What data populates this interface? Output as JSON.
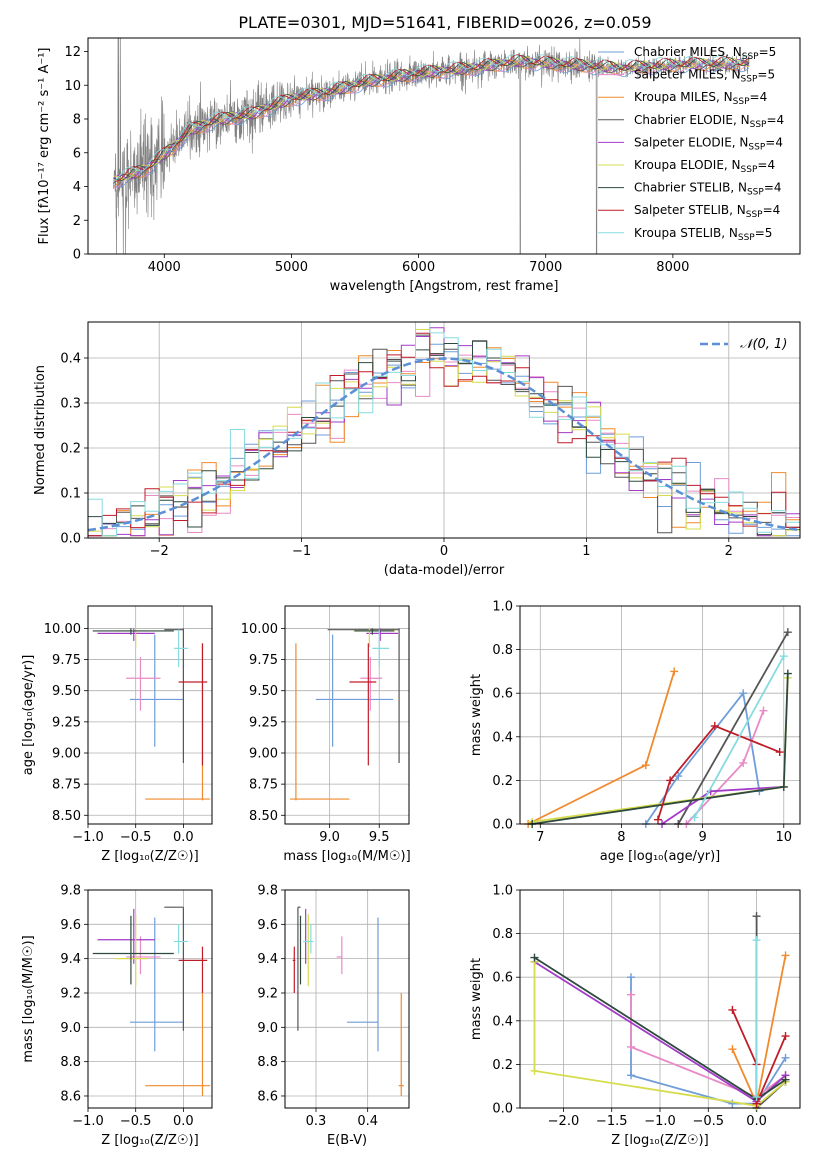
{
  "figure": {
    "title": "PLATE=0301, MJD=51641, FIBERID=0026, z=0.059"
  },
  "models": [
    {
      "name": "Chabrier MILES, N",
      "sub": "SSP",
      "suffix": "=5",
      "color": "#6f9dda",
      "eb": {
        "Z": [
          -0.3,
          -0.56,
          0.0
        ],
        "age": [
          9.43,
          9.05,
          9.95
        ],
        "mass": [
          9.03,
          8.86,
          9.64
        ],
        "ebv": [
          0.42,
          0.36,
          0.42
        ]
      }
    },
    {
      "name": "Salpeter MILES, N",
      "sub": "SSP",
      "suffix": "=5",
      "color": "#e88ac6",
      "eb": {
        "Z": [
          -0.45,
          -0.6,
          -0.24
        ],
        "age": [
          9.6,
          9.34,
          9.77
        ],
        "mass": [
          9.41,
          9.31,
          9.53
        ],
        "ebv": [
          0.35,
          0.34,
          0.35
        ]
      }
    },
    {
      "name": "Kroupa MILES, N",
      "sub": "SSP",
      "suffix": "=4",
      "color": "#f08a2c",
      "eb": {
        "Z": [
          0.2,
          -0.4,
          0.28
        ],
        "age": [
          8.63,
          8.62,
          9.88
        ],
        "mass": [
          8.66,
          8.6,
          9.2
        ],
        "ebv": [
          0.465,
          0.46,
          0.47
        ]
      }
    },
    {
      "name": "Chabrier ELODIE, N",
      "sub": "SSP",
      "suffix": "=4",
      "color": "#555555",
      "eb": {
        "Z": [
          0.0,
          -0.2,
          0.0
        ],
        "age": [
          9.99,
          8.92,
          10.0
        ],
        "mass": [
          9.7,
          8.98,
          9.7
        ],
        "ebv": [
          0.265,
          0.265,
          0.27
        ]
      }
    },
    {
      "name": "Salpeter ELODIE, N",
      "sub": "SSP",
      "suffix": "=4",
      "color": "#a23bc8",
      "eb": {
        "Z": [
          -0.52,
          -0.9,
          -0.3
        ],
        "age": [
          9.96,
          9.9,
          10.0
        ],
        "mass": [
          9.51,
          9.37,
          9.69
        ],
        "ebv": [
          0.28,
          0.28,
          0.28
        ]
      }
    },
    {
      "name": "Kroupa ELODIE, N",
      "sub": "SSP",
      "suffix": "=4",
      "color": "#d6dc4c",
      "eb": {
        "Z": [
          -0.5,
          -0.72,
          -0.37
        ],
        "age": [
          9.98,
          9.85,
          10.0
        ],
        "mass": [
          9.4,
          9.24,
          9.66
        ],
        "ebv": [
          0.285,
          0.282,
          0.286
        ]
      }
    },
    {
      "name": "Chabrier STELIB, N",
      "sub": "SSP",
      "suffix": "=4",
      "color": "#2e4a3e",
      "eb": {
        "Z": [
          -0.55,
          -0.95,
          -0.1
        ],
        "age": [
          9.98,
          9.95,
          10.0
        ],
        "mass": [
          9.43,
          9.25,
          9.65
        ],
        "ebv": [
          0.27,
          0.27,
          0.27
        ]
      }
    },
    {
      "name": "Salpeter STELIB, N",
      "sub": "SSP",
      "suffix": "=4",
      "color": "#c01c28",
      "eb": {
        "Z": [
          0.2,
          -0.05,
          0.25
        ],
        "age": [
          9.57,
          8.9,
          9.88
        ],
        "mass": [
          9.39,
          9.2,
          9.47
        ],
        "ebv": [
          0.258,
          0.255,
          0.26
        ]
      }
    },
    {
      "name": "Kroupa STELIB, N",
      "sub": "SSP",
      "suffix": "=5",
      "color": "#86dbe0",
      "eb": {
        "Z": [
          -0.05,
          -0.1,
          0.05
        ],
        "age": [
          9.84,
          9.69,
          9.99
        ],
        "mass": [
          9.5,
          9.43,
          9.6
        ],
        "ebv": [
          0.29,
          0.275,
          0.295
        ]
      }
    }
  ],
  "chart_data": [
    {
      "id": "spectrum",
      "type": "line",
      "xlabel": "wavelength [Angstrom, rest frame]",
      "ylabel": "Flux [fλ10⁻¹⁷ erg cm⁻² s⁻¹ A⁻¹]",
      "xlim": [
        3400,
        9000
      ],
      "ylim": [
        0,
        12.8
      ],
      "xticks": [
        4000,
        5000,
        6000,
        7000,
        8000
      ],
      "yticks": [
        0,
        2,
        4,
        6,
        8,
        10,
        12
      ],
      "data_color": "#808080",
      "data_wavelength_range": [
        3600,
        8600
      ],
      "continuum": {
        "x": [
          3600,
          3700,
          3850,
          3950,
          4050,
          4200,
          4400,
          4700,
          5000,
          5300,
          5600,
          6000,
          6400,
          6800,
          7200,
          7600,
          8000,
          8600
        ],
        "y": [
          4.3,
          4.6,
          5.0,
          5.6,
          6.2,
          7.3,
          7.9,
          8.3,
          9.2,
          9.6,
          10.2,
          10.7,
          11.0,
          11.4,
          11.2,
          11.0,
          11.2,
          11.3
        ]
      }
    },
    {
      "id": "residuals",
      "type": "bar",
      "xlabel": "(data-model)/error",
      "ylabel": "Normed distribution",
      "xlim": [
        -2.5,
        2.5
      ],
      "ylim": [
        0,
        0.48
      ],
      "xticks": [
        -2,
        -1,
        0,
        1,
        2
      ],
      "yticks": [
        0.0,
        0.1,
        0.2,
        0.3,
        0.4
      ],
      "legend_label": "𝒩(0, 1)",
      "legend_color": "#5b8fd6",
      "grid": true,
      "bin_width": 0.1
    },
    {
      "id": "z-age",
      "type": "scatter",
      "xlabel": "Z [log₁₀(Z/Z☉)]",
      "ylabel": "age  [log₁₀(age/yr)]",
      "xlim": [
        -1.0,
        0.3
      ],
      "ylim": [
        8.43,
        10.18
      ],
      "xticks": [
        -1.0,
        -0.5,
        0.0
      ],
      "yticks": [
        8.5,
        8.75,
        9.0,
        9.25,
        9.5,
        9.75,
        10.0
      ],
      "grid": true
    },
    {
      "id": "mass-age",
      "type": "scatter",
      "xlabel": "mass [log₁₀(M/M☉)]",
      "xlim": [
        8.55,
        9.8
      ],
      "ylim": [
        8.43,
        10.18
      ],
      "xticks": [
        9.0,
        9.5
      ],
      "yticks": [
        8.5,
        8.75,
        9.0,
        9.25,
        9.5,
        9.75,
        10.0
      ],
      "grid": true
    },
    {
      "id": "age-weight",
      "type": "line",
      "xlabel": "age  [log₁₀(age/yr)]",
      "ylabel": "mass weight",
      "xlim": [
        6.75,
        10.2
      ],
      "ylim": [
        0,
        1.0
      ],
      "xticks": [
        7,
        8,
        9,
        10
      ],
      "yticks": [
        0.0,
        0.2,
        0.4,
        0.6,
        0.8,
        1.0
      ],
      "grid": true,
      "series": [
        {
          "model": 0,
          "points": [
            [
              8.3,
              0.0
            ],
            [
              8.7,
              0.22
            ],
            [
              9.5,
              0.6
            ],
            [
              9.7,
              0.15
            ]
          ]
        },
        {
          "model": 1,
          "points": [
            [
              8.8,
              0.0
            ],
            [
              9.5,
              0.28
            ],
            [
              9.75,
              0.52
            ]
          ]
        },
        {
          "model": 2,
          "points": [
            [
              6.85,
              0.0
            ],
            [
              8.3,
              0.27
            ],
            [
              8.65,
              0.7
            ]
          ]
        },
        {
          "model": 3,
          "points": [
            [
              8.7,
              0.0
            ],
            [
              10.05,
              0.88
            ]
          ]
        },
        {
          "model": 4,
          "points": [
            [
              8.5,
              0.0
            ],
            [
              9.1,
              0.15
            ],
            [
              10.0,
              0.17
            ]
          ]
        },
        {
          "model": 5,
          "points": [
            [
              6.9,
              0.01
            ],
            [
              10.0,
              0.17
            ],
            [
              10.05,
              0.67
            ]
          ]
        },
        {
          "model": 6,
          "points": [
            [
              6.9,
              0.0
            ],
            [
              10.0,
              0.17
            ],
            [
              10.05,
              0.69
            ]
          ]
        },
        {
          "model": 7,
          "points": [
            [
              8.45,
              0.02
            ],
            [
              8.6,
              0.2
            ],
            [
              9.15,
              0.45
            ],
            [
              9.95,
              0.33
            ]
          ]
        },
        {
          "model": 8,
          "points": [
            [
              8.9,
              0.03
            ],
            [
              10.0,
              0.77
            ]
          ]
        }
      ]
    },
    {
      "id": "z-mass",
      "type": "scatter",
      "xlabel": "Z [log₁₀(Z/Z☉)]",
      "ylabel": "mass [log₁₀(M/M☉)]",
      "xlim": [
        -1.0,
        0.3
      ],
      "ylim": [
        8.53,
        9.8
      ],
      "xticks": [
        -1.0,
        -0.5,
        0.0
      ],
      "yticks": [
        8.6,
        8.8,
        9.0,
        9.2,
        9.4,
        9.6,
        9.8
      ],
      "grid": true
    },
    {
      "id": "ebv-mass",
      "type": "scatter",
      "xlabel": "E(B-V)",
      "xlim": [
        0.24,
        0.48
      ],
      "ylim": [
        8.53,
        9.8
      ],
      "xticks": [
        0.3,
        0.4
      ],
      "yticks": [
        8.6,
        8.8,
        9.0,
        9.2,
        9.4,
        9.6,
        9.8
      ],
      "grid": true
    },
    {
      "id": "z-weight",
      "type": "line",
      "xlabel": "Z [log₁₀(Z/Z☉)]",
      "ylabel": "mass weight",
      "xlim": [
        -2.45,
        0.45
      ],
      "ylim": [
        0,
        1.0
      ],
      "xticks": [
        -2.0,
        -1.5,
        -1.0,
        -0.5,
        0.0
      ],
      "yticks": [
        0.0,
        0.2,
        0.4,
        0.6,
        0.8,
        1.0
      ],
      "grid": true,
      "series": [
        {
          "model": 0,
          "points": [
            [
              -1.3,
              0.6
            ],
            [
              -1.3,
              0.15
            ],
            [
              -0.25,
              0.02
            ],
            [
              0.0,
              0.02
            ],
            [
              0.3,
              0.23
            ]
          ]
        },
        {
          "model": 1,
          "points": [
            [
              -1.3,
              0.52
            ],
            [
              -1.3,
              0.28
            ],
            [
              0.0,
              0.05
            ],
            [
              0.3,
              0.15
            ]
          ]
        },
        {
          "model": 2,
          "points": [
            [
              -0.25,
              0.27
            ],
            [
              0.0,
              0.02
            ],
            [
              0.3,
              0.7
            ]
          ]
        },
        {
          "model": 3,
          "points": [
            [
              0.0,
              0.88
            ],
            [
              0.0,
              0.0
            ],
            [
              0.3,
              0.12
            ]
          ]
        },
        {
          "model": 4,
          "points": [
            [
              -2.3,
              0.67
            ],
            [
              0.0,
              0.03
            ],
            [
              0.3,
              0.15
            ]
          ]
        },
        {
          "model": 5,
          "points": [
            [
              -2.3,
              0.67
            ],
            [
              -2.3,
              0.17
            ],
            [
              0.0,
              0.01
            ],
            [
              0.3,
              0.12
            ]
          ]
        },
        {
          "model": 6,
          "points": [
            [
              -2.3,
              0.69
            ],
            [
              0.0,
              0.04
            ],
            [
              0.3,
              0.13
            ]
          ]
        },
        {
          "model": 7,
          "points": [
            [
              -0.25,
              0.45
            ],
            [
              0.0,
              0.2
            ],
            [
              0.0,
              0.02
            ],
            [
              0.3,
              0.33
            ]
          ]
        },
        {
          "model": 8,
          "points": [
            [
              0.0,
              0.77
            ],
            [
              0.0,
              0.05
            ]
          ]
        }
      ]
    }
  ]
}
